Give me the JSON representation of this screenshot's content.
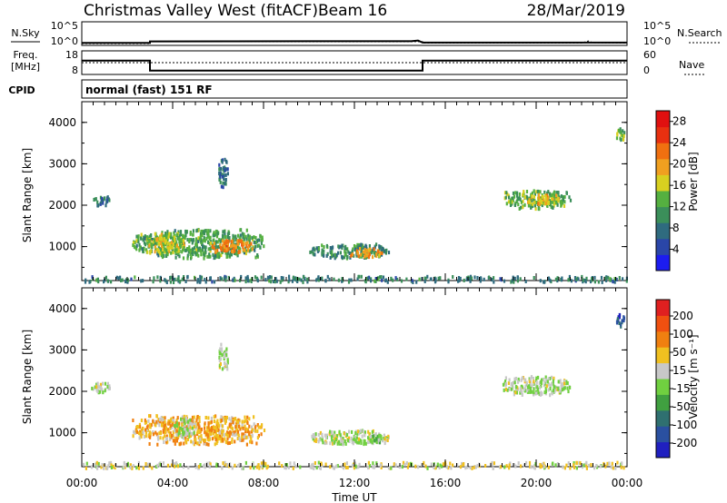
{
  "header": {
    "title": "Christmas Valley West (fitACF)",
    "beam": "Beam 16",
    "date": "28/Mar/2019"
  },
  "top_panels": {
    "nsky_label": "N.Sky",
    "nsearch_label": "N.Search",
    "noise_ticks": [
      "10^5",
      "10^0"
    ],
    "freq_label_1": "Freq.",
    "freq_label_2": "[MHz]",
    "freq_ticks": [
      "18",
      "8"
    ],
    "nave_label": "Nave",
    "nave_ticks": [
      "60",
      "0"
    ],
    "cpid_label": "CPID",
    "cpid_text": "normal (fast) 151 RF"
  },
  "axes": {
    "ylabel": "Slant Range [km]",
    "xlabel": "Time UT",
    "x_ticks": [
      "00:00",
      "04:00",
      "08:00",
      "12:00",
      "16:00",
      "20:00",
      "00:00"
    ],
    "y_ticks": [
      "1000",
      "2000",
      "3000",
      "4000"
    ]
  },
  "colorbars": {
    "power": {
      "label": "Power [dB]",
      "ticks": [
        "4",
        "8",
        "12",
        "16",
        "20",
        "24",
        "28"
      ],
      "colors": [
        "#1c1cf0",
        "#2a46a8",
        "#2f6b7f",
        "#3b8f5a",
        "#55b040",
        "#d8d020",
        "#f0a020",
        "#f07010",
        "#e83010",
        "#e01010"
      ]
    },
    "velocity": {
      "label": "Velocity [m s⁻¹]",
      "ticks": [
        "200",
        "100",
        "50",
        "15",
        "-15",
        "-50",
        "-100",
        "-200"
      ],
      "colors": [
        "#2020c0",
        "#2a50a0",
        "#2f7070",
        "#40a040",
        "#70d040",
        "#c8c8c8",
        "#f0c020",
        "#f08010",
        "#f05010",
        "#e02020"
      ]
    }
  },
  "chart_data": [
    {
      "type": "line",
      "name": "noise",
      "y_scale": "log",
      "x_unit": "hours UT",
      "series": [
        {
          "name": "N.Sky",
          "x": [
            0,
            3,
            3,
            10,
            14.5,
            14.8,
            15,
            24
          ],
          "y": [
            1.5,
            1.5,
            3.5,
            3.8,
            3.8,
            6,
            1.8,
            1.8
          ]
        },
        {
          "name": "N.Search",
          "x": [
            0,
            3,
            3,
            15,
            15,
            22,
            22.3,
            22.5,
            24
          ],
          "y": [
            1.0,
            1.0,
            3.0,
            3.0,
            1.4,
            1.4,
            4.5,
            1.6,
            1.4
          ]
        }
      ]
    },
    {
      "type": "line",
      "name": "frequency_nave",
      "series": [
        {
          "name": "Freq.",
          "unit": "MHz",
          "x": [
            0,
            3,
            3,
            15,
            15,
            24
          ],
          "y": [
            14,
            14,
            9,
            9,
            14,
            14
          ]
        },
        {
          "name": "Nave",
          "x": [
            0,
            24
          ],
          "y": [
            30,
            30
          ]
        }
      ]
    },
    {
      "type": "heatmap",
      "name": "power",
      "xlabel": "Time UT",
      "ylabel": "Slant Range [km]",
      "xlim_hours": [
        0,
        24
      ],
      "ylim_km": [
        180,
        4500
      ],
      "colorbar_label": "Power [dB]",
      "clim": [
        0,
        30
      ],
      "regions": [
        {
          "t": [
            2.2,
            8.0
          ],
          "r": [
            750,
            1450
          ],
          "v": 12
        },
        {
          "t": [
            2.8,
            4.5
          ],
          "r": [
            850,
            1350
          ],
          "v": 16
        },
        {
          "t": [
            5.5,
            7.5
          ],
          "r": [
            900,
            1200
          ],
          "v": 21
        },
        {
          "t": [
            10.0,
            13.5
          ],
          "r": [
            750,
            1100
          ],
          "v": 10
        },
        {
          "t": [
            11.8,
            13.2
          ],
          "r": [
            780,
            1000
          ],
          "v": 20
        },
        {
          "t": [
            18.5,
            21.5
          ],
          "r": [
            1950,
            2400
          ],
          "v": 13
        },
        {
          "t": [
            19.5,
            21.0
          ],
          "r": [
            2050,
            2300
          ],
          "v": 18
        },
        {
          "t": [
            0.4,
            1.2
          ],
          "r": [
            2000,
            2250
          ],
          "v": 8
        },
        {
          "t": [
            6.0,
            6.4
          ],
          "r": [
            2450,
            3200
          ],
          "v": 8
        },
        {
          "t": [
            23.5,
            23.9
          ],
          "r": [
            3600,
            3900
          ],
          "v": 13
        },
        {
          "t": [
            0,
            24
          ],
          "r": [
            180,
            320
          ],
          "v": 9
        }
      ]
    },
    {
      "type": "heatmap",
      "name": "velocity",
      "xlabel": "Time UT",
      "ylabel": "Slant Range [km]",
      "xlim_hours": [
        0,
        24
      ],
      "ylim_km": [
        180,
        4500
      ],
      "colorbar_label": "Velocity [m s⁻¹]",
      "clim": [
        -200,
        200
      ],
      "regions": [
        {
          "t": [
            2.2,
            8.0
          ],
          "r": [
            750,
            1450
          ],
          "v": -70
        },
        {
          "t": [
            4.0,
            5.0
          ],
          "r": [
            900,
            1400
          ],
          "v": -5
        },
        {
          "t": [
            10.0,
            13.5
          ],
          "r": [
            750,
            1100
          ],
          "v": -15
        },
        {
          "t": [
            12.5,
            13.2
          ],
          "r": [
            780,
            1000
          ],
          "v": 30
        },
        {
          "t": [
            18.5,
            21.5
          ],
          "r": [
            1950,
            2400
          ],
          "v": -5
        },
        {
          "t": [
            0.4,
            1.2
          ],
          "r": [
            2000,
            2250
          ],
          "v": -5
        },
        {
          "t": [
            6.0,
            6.4
          ],
          "r": [
            2450,
            3200
          ],
          "v": -5
        },
        {
          "t": [
            23.5,
            23.9
          ],
          "r": [
            3600,
            3900
          ],
          "v": 150
        },
        {
          "t": [
            0,
            24
          ],
          "r": [
            180,
            320
          ],
          "v": -25
        }
      ]
    }
  ]
}
